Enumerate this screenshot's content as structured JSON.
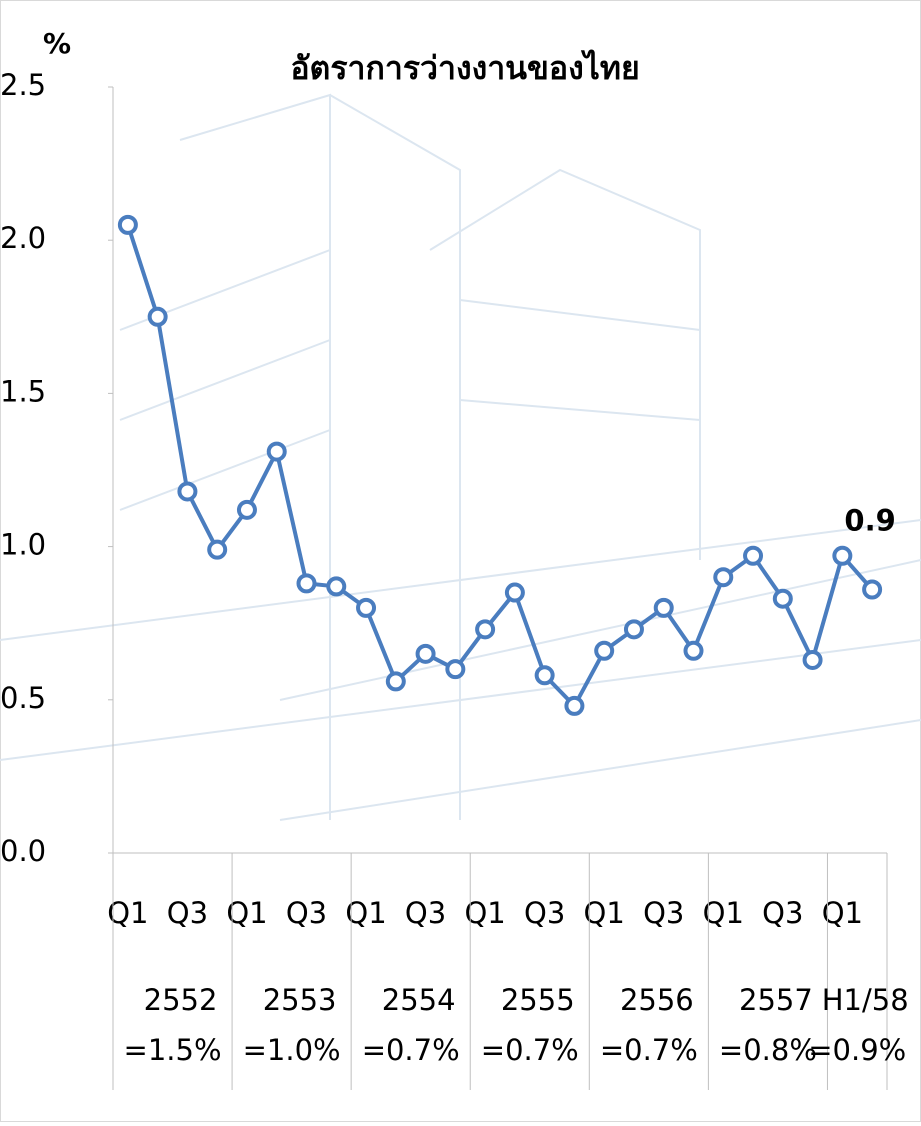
{
  "chart_data": {
    "type": "line",
    "title": "อัตราการว่างงานของไทย",
    "y_label": "%",
    "categories": [
      "Q1",
      null,
      "Q3",
      null,
      "Q1",
      null,
      "Q3",
      null,
      "Q1",
      null,
      "Q3",
      null,
      "Q1",
      null,
      "Q3",
      null,
      "Q1",
      null,
      "Q3",
      null,
      "Q1",
      null,
      "Q3",
      null,
      "Q1",
      null
    ],
    "series": [
      {
        "name": "อัตราการว่างงาน",
        "color": "#4a7dbf",
        "values": [
          2.05,
          1.75,
          1.18,
          0.99,
          1.12,
          1.31,
          0.88,
          0.87,
          0.8,
          0.56,
          0.65,
          0.6,
          0.73,
          0.85,
          0.58,
          0.48,
          0.66,
          0.73,
          0.8,
          0.66,
          0.9,
          0.97,
          0.83,
          0.63,
          0.97,
          0.86
        ],
        "value_labels": [
          null,
          null,
          null,
          null,
          null,
          null,
          null,
          null,
          null,
          null,
          null,
          null,
          null,
          null,
          null,
          null,
          null,
          null,
          null,
          null,
          null,
          null,
          null,
          null,
          null,
          "0.9"
        ]
      }
    ],
    "groups": [
      {
        "name": "2552",
        "note": "=1.5%"
      },
      {
        "name": "2553",
        "note": "=1.0%"
      },
      {
        "name": "2554",
        "note": "=0.7%"
      },
      {
        "name": "2555",
        "note": "=0.7%"
      },
      {
        "name": "2556",
        "note": "=0.7%"
      },
      {
        "name": "2557",
        "note": "=0.8%"
      },
      {
        "name": "H1/58",
        "note": "=0.9%"
      }
    ],
    "ylim": [
      0,
      2.5
    ],
    "yticks": [
      {
        "value": 0,
        "label": "0.0"
      },
      {
        "value": 0.5,
        "label": "0.5"
      },
      {
        "value": 1,
        "label": "1.0"
      },
      {
        "value": 1.5,
        "label": "1.5"
      },
      {
        "value": 2,
        "label": "2.0"
      },
      {
        "value": 2.5,
        "label": "2.5"
      }
    ],
    "grid": false
  }
}
